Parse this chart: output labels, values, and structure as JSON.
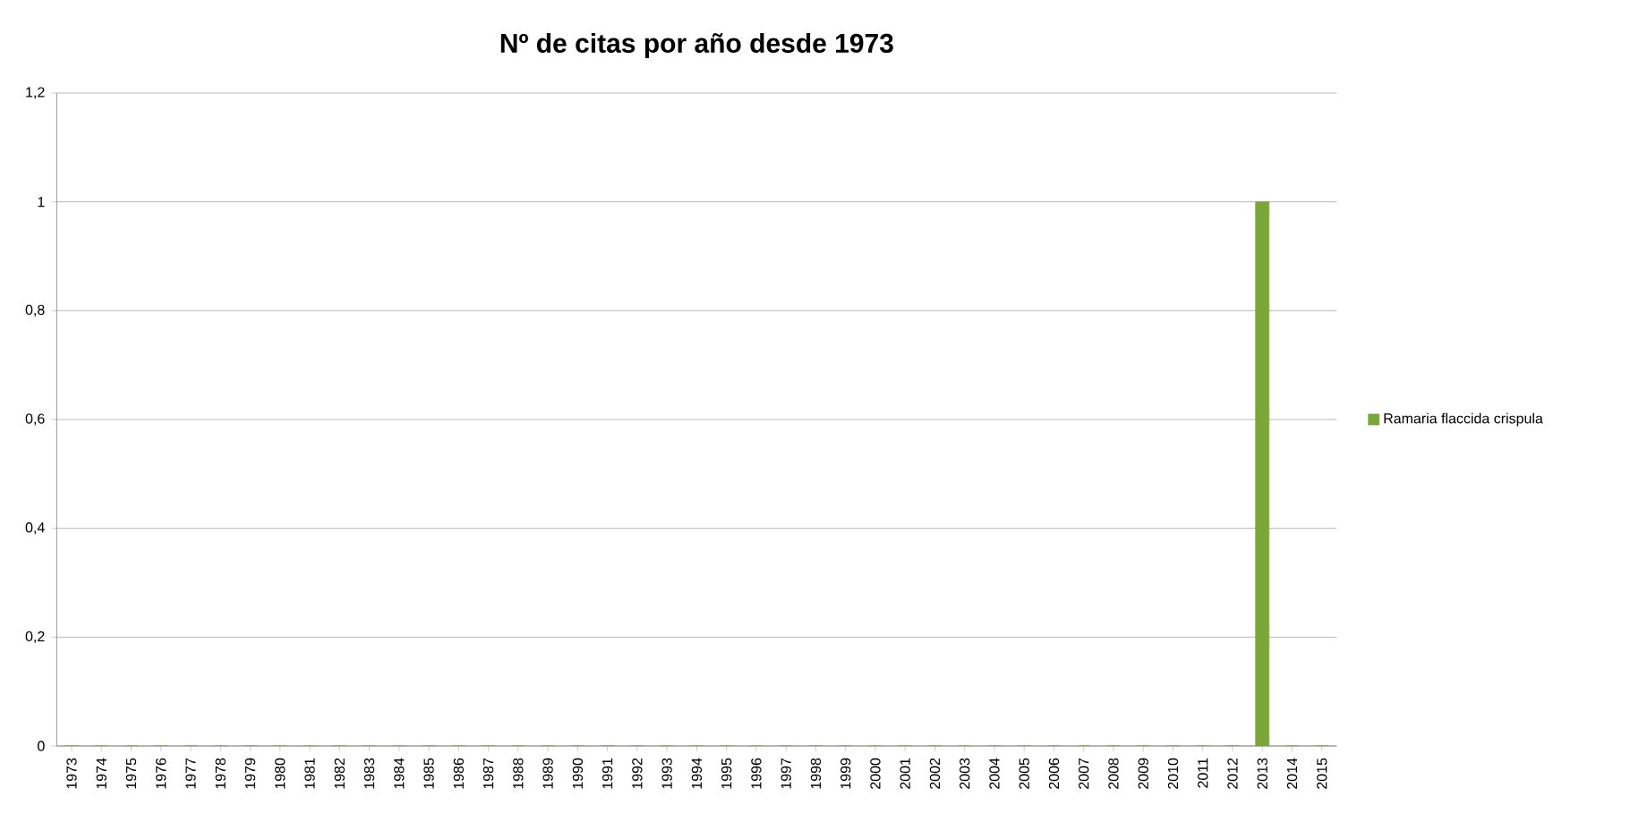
{
  "chart_data": {
    "type": "bar",
    "title": "Nº de citas por año desde 1973",
    "categories": [
      "1973",
      "1974",
      "1975",
      "1976",
      "1977",
      "1978",
      "1979",
      "1980",
      "1981",
      "1982",
      "1983",
      "1984",
      "1985",
      "1986",
      "1987",
      "1988",
      "1989",
      "1990",
      "1991",
      "1992",
      "1993",
      "1994",
      "1995",
      "1996",
      "1997",
      "1998",
      "1999",
      "2000",
      "2001",
      "2002",
      "2003",
      "2004",
      "2005",
      "2006",
      "2007",
      "2008",
      "2009",
      "2010",
      "2011",
      "2012",
      "2013",
      "2014",
      "2015"
    ],
    "series": [
      {
        "name": "Ramaria flaccida crispula",
        "color": "#7aa63a",
        "values": [
          0,
          0,
          0,
          0,
          0,
          0,
          0,
          0,
          0,
          0,
          0,
          0,
          0,
          0,
          0,
          0,
          0,
          0,
          0,
          0,
          0,
          0,
          0,
          0,
          0,
          0,
          0,
          0,
          0,
          0,
          0,
          0,
          0,
          0,
          0,
          0,
          0,
          0,
          0,
          0,
          1,
          0,
          0
        ]
      }
    ],
    "ylim": [
      0,
      1.2
    ],
    "yticks": [
      0,
      {
        "value": 0.2,
        "label": "0,2"
      },
      {
        "value": 0.4,
        "label": "0,4"
      },
      {
        "value": 0.6,
        "label": "0,6"
      },
      {
        "value": 0.8,
        "label": "0,8"
      },
      1,
      {
        "value": 1.2,
        "label": "1,2"
      }
    ],
    "grid": "y",
    "legend": "right"
  }
}
